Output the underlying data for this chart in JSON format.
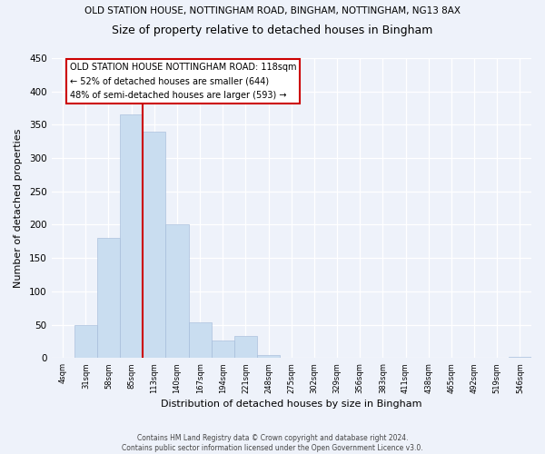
{
  "title": "OLD STATION HOUSE, NOTTINGHAM ROAD, BINGHAM, NOTTINGHAM, NG13 8AX",
  "subtitle": "Size of property relative to detached houses in Bingham",
  "xlabel": "Distribution of detached houses by size in Bingham",
  "ylabel": "Number of detached properties",
  "bar_color": "#c9ddf0",
  "highlight_color": "#cc0000",
  "bin_labels": [
    "4sqm",
    "31sqm",
    "58sqm",
    "85sqm",
    "113sqm",
    "140sqm",
    "167sqm",
    "194sqm",
    "221sqm",
    "248sqm",
    "275sqm",
    "302sqm",
    "329sqm",
    "356sqm",
    "383sqm",
    "411sqm",
    "438sqm",
    "465sqm",
    "492sqm",
    "519sqm",
    "546sqm"
  ],
  "bar_heights": [
    0,
    49,
    180,
    365,
    340,
    200,
    54,
    26,
    33,
    5,
    0,
    0,
    0,
    0,
    0,
    0,
    0,
    0,
    0,
    0,
    1
  ],
  "highlight_bar_index": 4,
  "redline_x": 3.5,
  "annotation_title": "OLD STATION HOUSE NOTTINGHAM ROAD: 118sqm",
  "annotation_line2": "← 52% of detached houses are smaller (644)",
  "annotation_line3": "48% of semi-detached houses are larger (593) →",
  "ylim": [
    0,
    450
  ],
  "yticks": [
    0,
    50,
    100,
    150,
    200,
    250,
    300,
    350,
    400,
    450
  ],
  "footer_line1": "Contains HM Land Registry data © Crown copyright and database right 2024.",
  "footer_line2": "Contains public sector information licensed under the Open Government Licence v3.0.",
  "background_color": "#eef2fa"
}
